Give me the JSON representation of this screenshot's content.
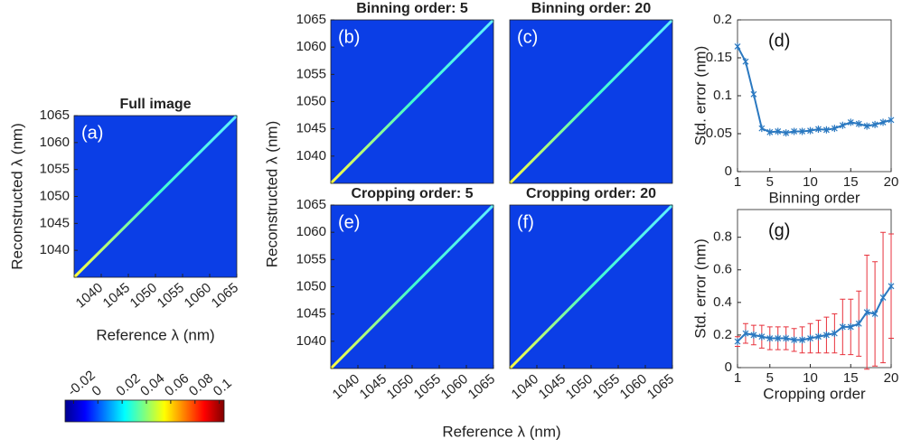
{
  "shared": {
    "xlabel": "Reference λ (nm)",
    "ylabel": "Reconstructed λ (nm)"
  },
  "chart_data": [
    {
      "type": "heatmap",
      "title": "Full image",
      "panel": "(a)",
      "xlabel": "Reference λ (nm)",
      "ylabel": "Reconstructed λ (nm)",
      "xlim": [
        1035,
        1065
      ],
      "ylim": [
        1035,
        1065
      ],
      "xticks": [
        1040,
        1045,
        1050,
        1055,
        1060,
        1065
      ],
      "yticks": [
        1040,
        1045,
        1050,
        1055,
        1060,
        1065
      ]
    },
    {
      "type": "heatmap",
      "title": "Binning order: 5",
      "panel": "(b)",
      "ylim": [
        1035,
        1065
      ],
      "yticks": [
        1040,
        1045,
        1050,
        1055,
        1060,
        1065
      ]
    },
    {
      "type": "heatmap",
      "title": "Binning order: 20",
      "panel": "(c)"
    },
    {
      "type": "heatmap",
      "title": "Cropping order: 5",
      "panel": "(e)",
      "xlim": [
        1035,
        1065
      ],
      "ylim": [
        1035,
        1065
      ],
      "xticks": [
        1040,
        1045,
        1050,
        1055,
        1060,
        1065
      ],
      "yticks": [
        1040,
        1045,
        1050,
        1055,
        1060,
        1065
      ]
    },
    {
      "type": "heatmap",
      "title": "Cropping order: 20",
      "panel": "(f)",
      "xlim": [
        1035,
        1065
      ],
      "xticks": [
        1040,
        1045,
        1050,
        1055,
        1060,
        1065
      ]
    },
    {
      "type": "line",
      "panel": "(d)",
      "xlabel": "Binning order",
      "ylabel": "Std. error (nm)",
      "x": [
        1,
        2,
        3,
        4,
        5,
        6,
        7,
        8,
        9,
        10,
        11,
        12,
        13,
        14,
        15,
        16,
        17,
        18,
        19,
        20
      ],
      "series": [
        {
          "color": "#2a78c0",
          "values": [
            0.165,
            0.145,
            0.102,
            0.057,
            0.052,
            0.053,
            0.051,
            0.053,
            0.053,
            0.054,
            0.056,
            0.055,
            0.057,
            0.061,
            0.065,
            0.063,
            0.06,
            0.062,
            0.065,
            0.068
          ]
        }
      ],
      "xlim": [
        1,
        20
      ],
      "ylim": [
        0,
        0.2
      ],
      "xticks": [
        1,
        5,
        10,
        15,
        20
      ],
      "yticks": [
        0,
        0.05,
        0.1,
        0.15,
        0.2
      ]
    },
    {
      "type": "line",
      "panel": "(g)",
      "xlabel": "Cropping order",
      "ylabel": "Std. error (nm)",
      "x": [
        1,
        2,
        3,
        4,
        5,
        6,
        7,
        8,
        9,
        10,
        11,
        12,
        13,
        14,
        15,
        16,
        17,
        18,
        19,
        20
      ],
      "series": [
        {
          "color": "#2a78c0",
          "error_color": "#e8323c",
          "values": [
            0.16,
            0.21,
            0.2,
            0.19,
            0.18,
            0.18,
            0.18,
            0.17,
            0.17,
            0.18,
            0.19,
            0.2,
            0.21,
            0.25,
            0.25,
            0.27,
            0.34,
            0.33,
            0.43,
            0.5
          ],
          "errors": [
            0.03,
            0.06,
            0.06,
            0.07,
            0.07,
            0.07,
            0.07,
            0.07,
            0.08,
            0.09,
            0.1,
            0.11,
            0.12,
            0.17,
            0.17,
            0.2,
            0.35,
            0.32,
            0.4,
            0.32
          ]
        }
      ],
      "xlim": [
        1,
        20
      ],
      "ylim": [
        0,
        0.97
      ],
      "xticks": [
        1,
        5,
        10,
        15,
        20
      ],
      "yticks": [
        0,
        0.2,
        0.4,
        0.6,
        0.8
      ]
    },
    {
      "type": "colorbar",
      "clim": [
        -0.027,
        0.104
      ],
      "ticks": [
        -0.02,
        0,
        0.02,
        0.04,
        0.06,
        0.08,
        0.1
      ]
    }
  ]
}
